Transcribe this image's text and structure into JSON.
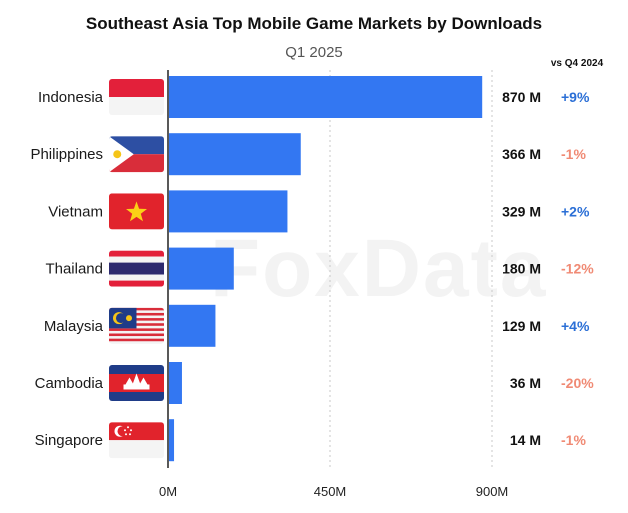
{
  "chart_data": {
    "type": "bar",
    "orientation": "horizontal",
    "title": "Southeast Asia Top Mobile Game Markets by Downloads",
    "subtitle": "Q1 2025",
    "comparison_header": "vs Q4 2024",
    "categories": [
      "Indonesia",
      "Philippines",
      "Vietnam",
      "Thailand",
      "Malaysia",
      "Cambodia",
      "Singapore"
    ],
    "values": [
      870,
      366,
      329,
      180,
      129,
      36,
      14
    ],
    "value_labels": [
      "870 M",
      "366 M",
      "329 M",
      "180 M",
      "129 M",
      "36 M",
      "14 M"
    ],
    "changes": [
      "+9%",
      "-1%",
      "+2%",
      "-12%",
      "+4%",
      "-20%",
      "-1%"
    ],
    "x_ticks": [
      0,
      450,
      900
    ],
    "x_tick_labels": [
      "0M",
      "450M",
      "900M"
    ],
    "xlim": [
      0,
      900
    ],
    "grid": true,
    "colors": {
      "bar": "#3377f2",
      "positive": "#2b6fd6",
      "negative": "#f08a74"
    },
    "flag_icons": [
      "indonesia-flag-icon",
      "philippines-flag-icon",
      "vietnam-flag-icon",
      "thailand-flag-icon",
      "malaysia-flag-icon",
      "cambodia-flag-icon",
      "singapore-flag-icon"
    ],
    "watermark": "FoxData"
  }
}
